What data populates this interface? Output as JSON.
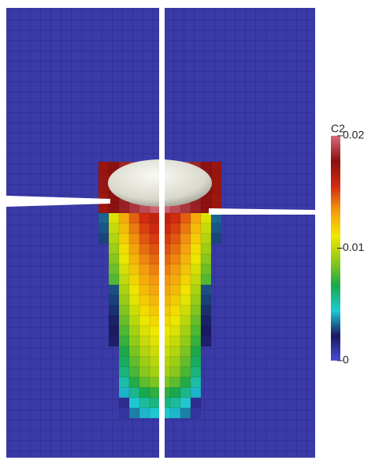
{
  "chart_data": {
    "type": "colorbar",
    "title": "C2",
    "ylim": [
      0,
      0.02
    ],
    "yticks": [
      0,
      0.01,
      0.02
    ],
    "colormap": [
      "#4b4bd8",
      "#191960",
      "#1fc9d6",
      "#18a84a",
      "#8fc91a",
      "#f0e800",
      "#f59a10",
      "#d02a10",
      "#8a1010",
      "#d86a7a"
    ]
  }
}
